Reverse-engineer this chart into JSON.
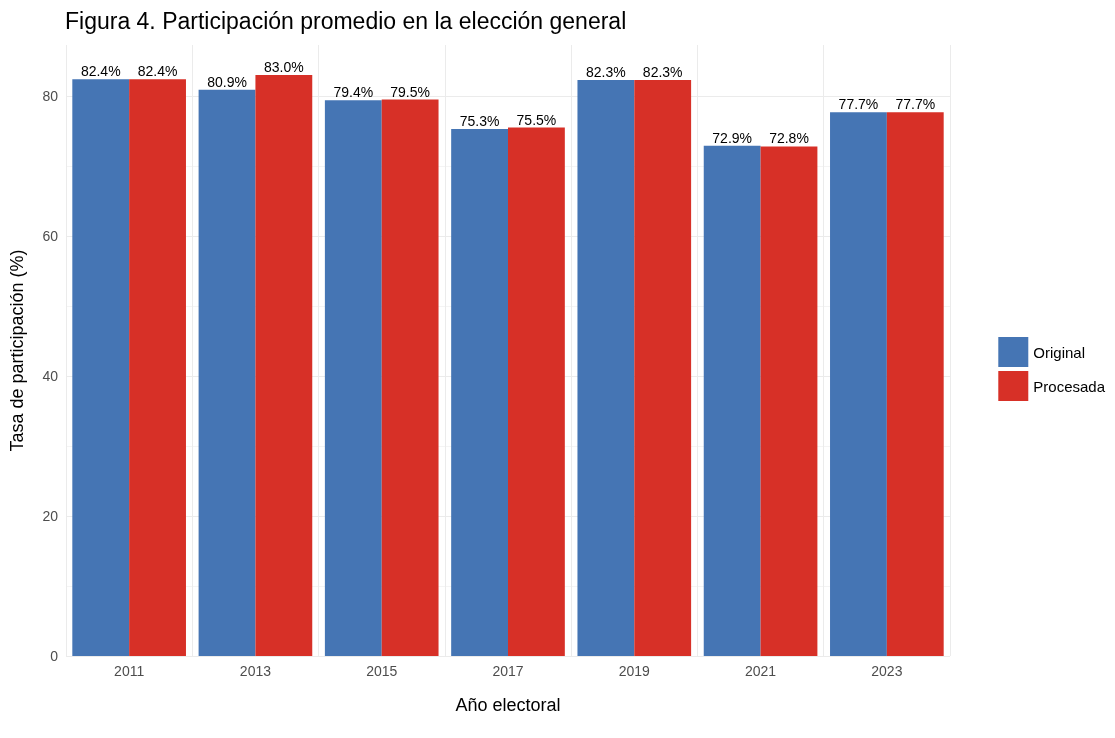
{
  "chart_data": {
    "type": "bar",
    "title": "Figura 4. Participación promedio en la elección general",
    "xlabel": "Año electoral",
    "ylabel": "Tasa de participación (%)",
    "categories": [
      "2011",
      "2013",
      "2015",
      "2017",
      "2019",
      "2021",
      "2023"
    ],
    "series": [
      {
        "name": "Original",
        "color": "#4575b4",
        "values": [
          82.4,
          80.9,
          79.4,
          75.3,
          82.3,
          72.9,
          77.7
        ],
        "value_labels": [
          "82.4%",
          "80.9%",
          "79.4%",
          "75.3%",
          "82.3%",
          "72.9%",
          "77.7%"
        ]
      },
      {
        "name": "Procesada",
        "color": "#d73027",
        "values": [
          82.4,
          83.0,
          79.5,
          75.5,
          82.3,
          72.8,
          77.7
        ],
        "value_labels": [
          "82.4%",
          "83.0%",
          "79.5%",
          "75.5%",
          "82.3%",
          "72.8%",
          "77.7%"
        ]
      }
    ],
    "ylim": [
      0,
      87.3
    ],
    "yticks": [
      0,
      20,
      40,
      60,
      80
    ],
    "grid": true,
    "legend": "right"
  }
}
